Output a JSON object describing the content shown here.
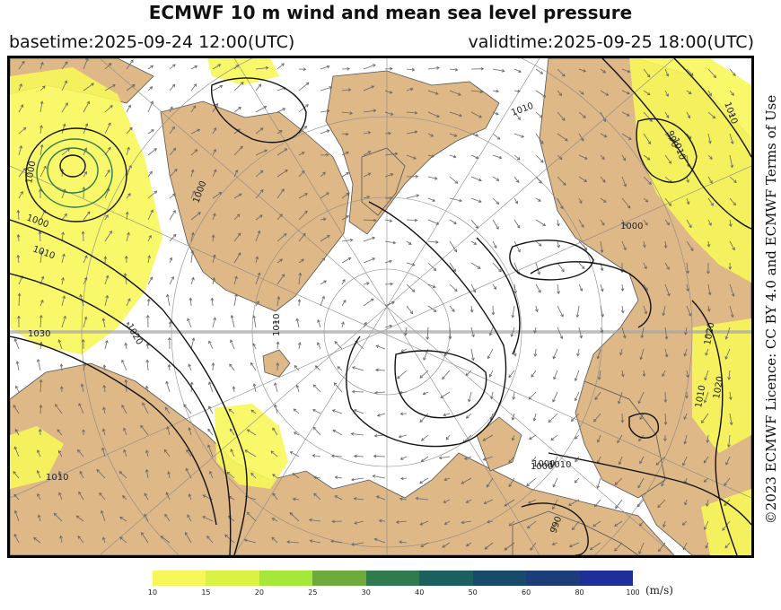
{
  "title": "ECMWF 10 m wind and mean sea level pressure",
  "basetime": "basetime:2025-09-24 12:00(UTC)",
  "validtime": "validtime:2025-09-25 18:00(UTC)",
  "licence": "©2023 ECMWF Licence: CC BY 4.0 and ECMWF Terms of Use",
  "colorbar": {
    "unit": "(m/s)",
    "ticks": [
      "10",
      "15",
      "20",
      "25",
      "30",
      "40",
      "50",
      "60",
      "80",
      "100"
    ],
    "colors": [
      "#f7f75a",
      "#d9f244",
      "#a6e83a",
      "#6eaa3c",
      "#2f7a4e",
      "#1c5f5f",
      "#1a4a6a",
      "#1c3c7a",
      "#1f2f9a"
    ]
  },
  "isobar_labels": [
    "1030",
    "1020",
    "1010",
    "1000",
    "1000",
    "1010",
    "1020",
    "1010",
    "1010",
    "1000",
    "1000",
    "1000",
    "1010",
    "1010",
    "1020",
    "1000",
    "990",
    "990",
    "1010",
    "1010"
  ],
  "colors": {
    "land": "#deb887",
    "ocean": "#ffffff",
    "wind_highlight": "#f7f75a",
    "isobar": "#111111",
    "wind_vector": "#666666",
    "graticule": "#888888"
  }
}
